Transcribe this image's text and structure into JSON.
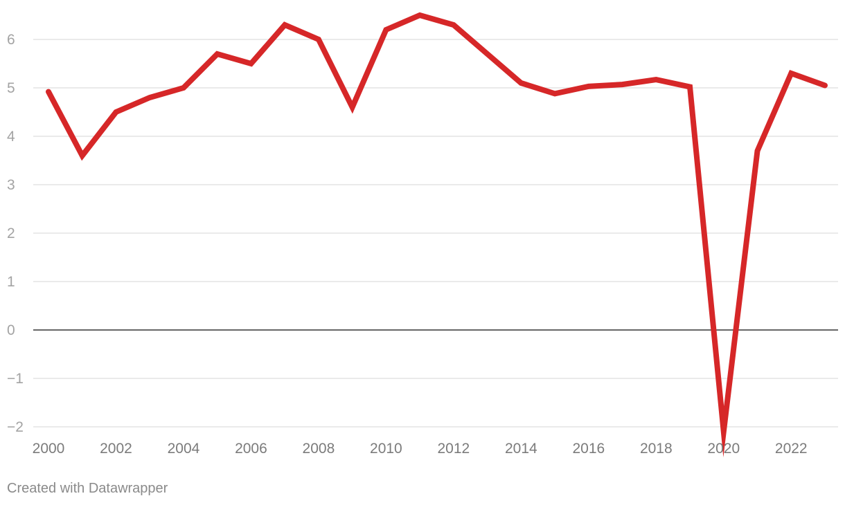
{
  "chart_data": {
    "type": "line",
    "title": "",
    "xlabel": "",
    "ylabel": "",
    "x": [
      2000,
      2001,
      2002,
      2003,
      2004,
      2005,
      2006,
      2007,
      2008,
      2009,
      2010,
      2011,
      2012,
      2013,
      2014,
      2015,
      2016,
      2017,
      2018,
      2019,
      2020,
      2021,
      2022,
      2023
    ],
    "series": [
      {
        "color": "#d62728",
        "values": [
          4.92,
          3.6,
          4.5,
          4.8,
          5.0,
          5.7,
          5.5,
          6.3,
          6.0,
          4.6,
          6.2,
          6.5,
          6.3,
          5.7,
          5.1,
          4.88,
          5.03,
          5.07,
          5.17,
          5.02,
          -2.1,
          3.7,
          5.3,
          5.05
        ]
      }
    ],
    "xlim": [
      2000,
      2023
    ],
    "ylim": [
      -2,
      6
    ],
    "y_ticks": [
      "6",
      "5",
      "4",
      "3",
      "2",
      "1",
      "0",
      "−1",
      "−2"
    ],
    "x_ticks": [
      "2000",
      "2002",
      "2004",
      "2006",
      "2008",
      "2010",
      "2012",
      "2014",
      "2016",
      "2018",
      "2020",
      "2022"
    ],
    "grid": true,
    "legend": "none",
    "colors": {
      "line": "#d62728",
      "grid": "#e3e3e3",
      "zero_line": "#333333",
      "tick_text_y": "#a3a3a3",
      "tick_text_x": "#7b7b7b"
    }
  },
  "footer": {
    "credit": "Created with Datawrapper"
  }
}
